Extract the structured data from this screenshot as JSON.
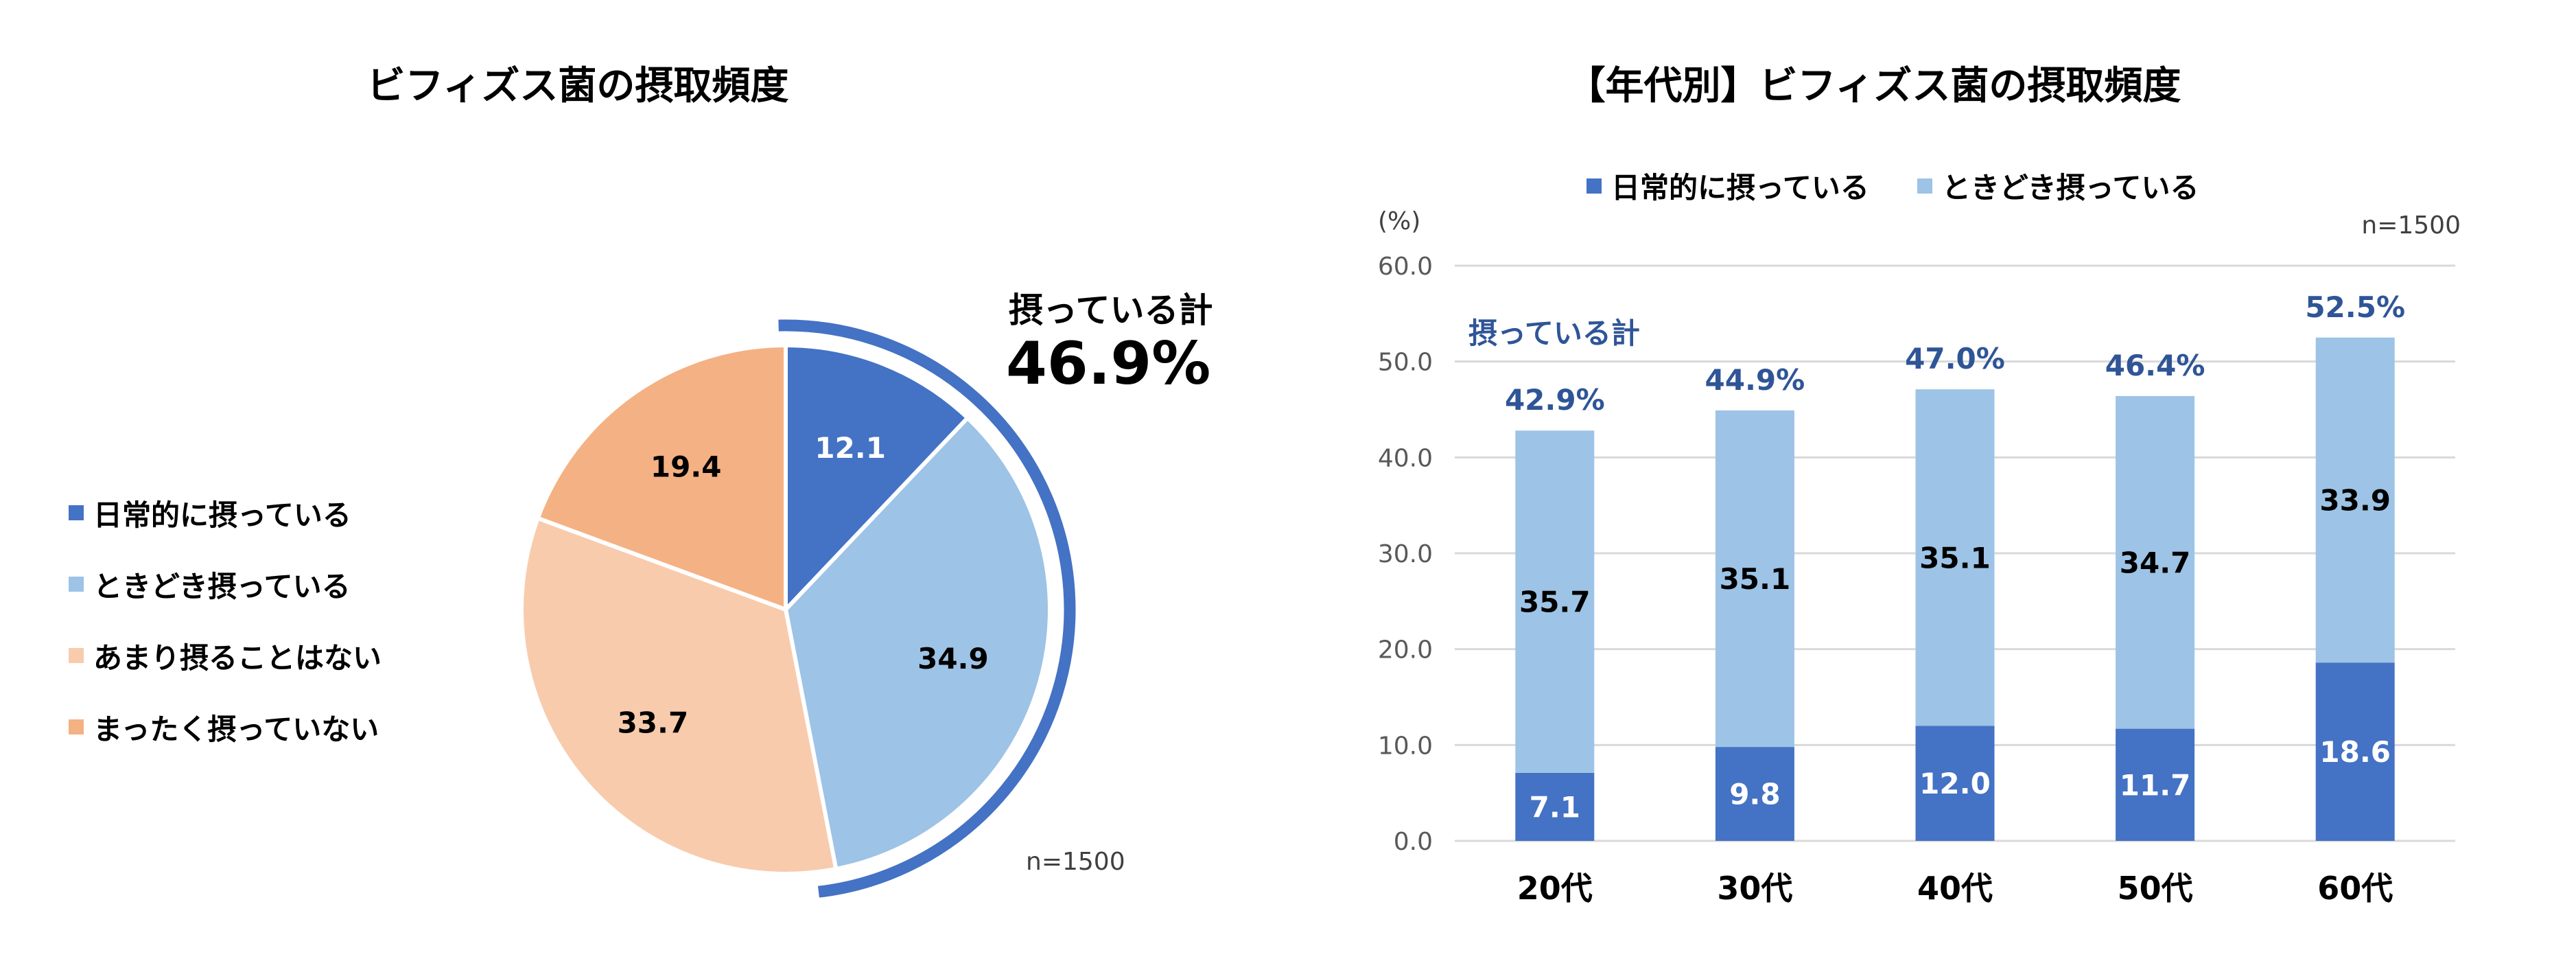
{
  "colors": {
    "daily": "#4472C4",
    "sometimes": "#9DC3E6",
    "rarely": "#F8CBAD",
    "never": "#F4B183",
    "accent_text": "#2F5597",
    "grid": "#D9D9D9",
    "axis_text": "#595959"
  },
  "chart_data": [
    {
      "type": "pie",
      "title": "ビフィズス菌の摂取頻度",
      "categories": [
        "日常的に摂っている",
        "ときどき摂っている",
        "あまり摂ることはない",
        "まったく摂っていない"
      ],
      "values": [
        12.1,
        34.9,
        33.7,
        19.4
      ],
      "data_labels": [
        "12.1",
        "34.9",
        "33.7",
        "19.4"
      ],
      "legend_position": "left",
      "annotation": {
        "label": "摂っている計",
        "value": "46.9%",
        "covers": [
          "日常的に摂っている",
          "ときどき摂っている"
        ]
      },
      "sample_note": "n=1500"
    },
    {
      "type": "bar",
      "stacked": true,
      "title": "【年代別】ビフィズス菌の摂取頻度",
      "categories": [
        "20代",
        "30代",
        "40代",
        "50代",
        "60代"
      ],
      "series": [
        {
          "name": "日常的に摂っている",
          "values": [
            7.1,
            9.8,
            12.0,
            11.7,
            18.6
          ],
          "labels": [
            "7.1",
            "9.8",
            "12.0",
            "11.7",
            "18.6"
          ]
        },
        {
          "name": "ときどき摂っている",
          "values": [
            35.7,
            35.1,
            35.1,
            34.7,
            33.9
          ],
          "labels": [
            "35.7",
            "35.1",
            "35.1",
            "34.7",
            "33.9"
          ]
        }
      ],
      "totals": {
        "label": "摂っている計",
        "values": [
          "42.9%",
          "44.9%",
          "47.0%",
          "46.4%",
          "52.5%"
        ]
      },
      "ylabel": "(%)",
      "ylim": [
        0,
        60
      ],
      "yticks": [
        "0.0",
        "10.0",
        "20.0",
        "30.0",
        "40.0",
        "50.0",
        "60.0"
      ],
      "grid": true,
      "legend_position": "top",
      "sample_note": "n=1500"
    }
  ]
}
